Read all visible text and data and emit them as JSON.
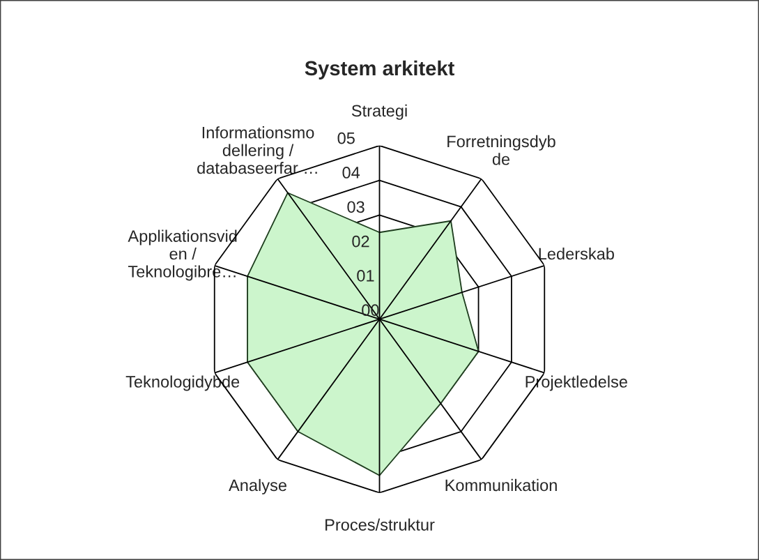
{
  "chart_data": {
    "type": "radar",
    "title": "System arkitekt",
    "categories": [
      "Strategi",
      "Forretningsdyb\nde",
      "Lederskab",
      "Projektledelse",
      "Kommunikation",
      "Proces/struktur",
      "Analyse",
      "Teknologidybde",
      "Applikationsvid\nen /\nTeknologibre…",
      "Informationsmo\ndellering /\ndatabaseerfar …"
    ],
    "series": [
      {
        "color": "#ccf5cc",
        "values": [
          2.5,
          3.5,
          2.5,
          3,
          3,
          4.5,
          4,
          4,
          4,
          4.5
        ]
      }
    ],
    "ylim": [
      0,
      5
    ],
    "yticks": [
      {
        "value": 0,
        "label": "00"
      },
      {
        "value": 1,
        "label": "01"
      },
      {
        "value": 2,
        "label": "02"
      },
      {
        "value": 3,
        "label": "03"
      },
      {
        "value": 4,
        "label": "04"
      },
      {
        "value": 5,
        "label": "05"
      }
    ],
    "grid": true
  }
}
